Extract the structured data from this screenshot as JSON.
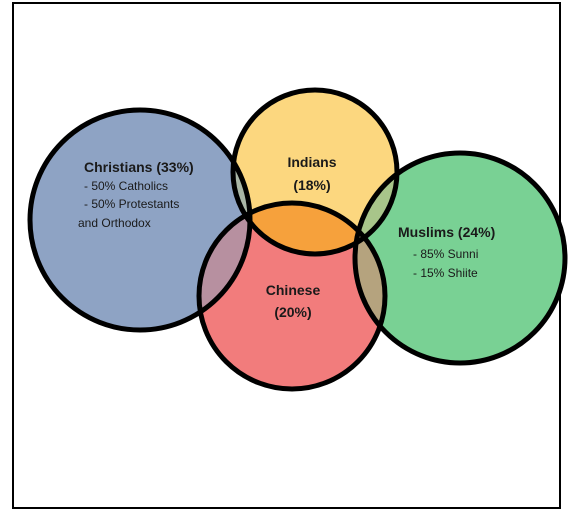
{
  "header_fragment": "– – – – –",
  "colors": {
    "christians": "#8ea3c4",
    "indians": "#fcd77f",
    "chinese": "#f27c7c",
    "muslims": "#79d194",
    "indians_chinese_overlap": "#f6a13c",
    "christians_indians_overlap": "#a9b6a6",
    "chinese_muslims_overlap": "#b5a37e",
    "indians_muslims_overlap": "#a8c58a",
    "christians_chinese_overlap": "#b790a0",
    "outline": "#000000"
  },
  "groups": {
    "christians": {
      "title": "Christians (33%)",
      "lines": [
        "- 50% Catholics",
        "- 50% Protestants",
        "and Orthodox"
      ]
    },
    "indians": {
      "title": "Indians",
      "pct": "(18%)"
    },
    "chinese": {
      "title": "Chinese",
      "pct": "(20%)"
    },
    "muslims": {
      "title": "Muslims (24%)",
      "lines": [
        "- 85% Sunni",
        "- 15% Shiite"
      ]
    }
  }
}
